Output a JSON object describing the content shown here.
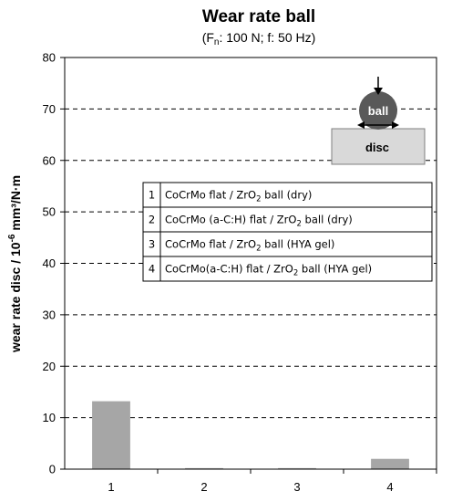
{
  "chart_data": {
    "type": "bar",
    "title": "Wear rate ball",
    "subtitle": {
      "open": "(F",
      "sub": "n",
      "rest": ": 100 N; f: 50 Hz)"
    },
    "ylabel": {
      "pre": "wear rate disc / 10",
      "exp": "-6",
      "post": " mm³/N·m"
    },
    "categories": [
      "1",
      "2",
      "3",
      "4"
    ],
    "values": [
      13.2,
      0.2,
      0.2,
      2.0
    ],
    "ylim": [
      0,
      80
    ],
    "yticks": [
      "0",
      "10",
      "20",
      "30",
      "40",
      "50",
      "60",
      "70",
      "80"
    ],
    "grid": "dashed horizontal",
    "bar_color": "#a6a6a6",
    "legend": {
      "placement": "upper-center",
      "entries": [
        {
          "num": "1",
          "pre": "CoCrMo flat / ZrO",
          "sub": "2",
          "post": " ball (dry)"
        },
        {
          "num": "2",
          "pre": "CoCrMo (a-C:H) flat / ZrO",
          "sub": "2",
          "post": " ball (dry)"
        },
        {
          "num": "3",
          "pre": "CoCrMo flat / ZrO",
          "sub": "2",
          "post": " ball (HYA gel)"
        },
        {
          "num": "4",
          "pre": "CoCrMo(a-C:H) flat / ZrO",
          "sub": "2",
          "post": " ball (HYA gel)"
        }
      ]
    },
    "inset": {
      "ball_label": "ball",
      "disc_label": "disc",
      "ball_color": "#595959",
      "disc_color": "#d9d9d9"
    }
  }
}
